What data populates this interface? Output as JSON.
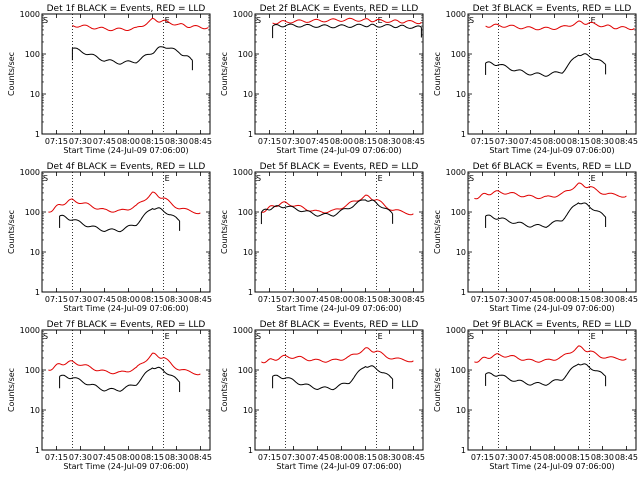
{
  "figure": {
    "date_label": "Start Time (24-Jul-09 07:06:00)",
    "ylabel": "Counts/sec",
    "x_ticks": [
      "07:15",
      "07:30",
      "07:45",
      "08:00",
      "08:15",
      "08:30",
      "08:45"
    ],
    "y_ticks": [
      "1",
      "10",
      "100",
      "1000"
    ],
    "marker_labels": [
      "S",
      "E"
    ],
    "series_colors": {
      "events": "#000000",
      "lld": "#e00000"
    }
  },
  "chart_data": [
    {
      "type": "line",
      "title": "Det 1f BLACK = Events, RED = LLD",
      "xlabel": "Start Time (24-Jul-09 07:06:00)",
      "ylabel": "Counts/sec",
      "yscale": "log",
      "ylim": [
        1,
        1000
      ],
      "xlim": [
        "07:06",
        "08:51"
      ],
      "markers": [
        "07:25",
        "08:22"
      ],
      "x": [
        "07:17",
        "07:25",
        "07:35",
        "07:45",
        "07:55",
        "08:05",
        "08:15",
        "08:22",
        "08:32",
        "08:40",
        "08:50"
      ],
      "series": [
        {
          "color": "#e00000",
          "values": [
            null,
            520,
            480,
            420,
            410,
            430,
            720,
            650,
            540,
            480,
            460
          ]
        },
        {
          "color": "#000000",
          "values": [
            null,
            140,
            100,
            70,
            60,
            65,
            110,
            160,
            110,
            70,
            null
          ]
        }
      ]
    },
    {
      "type": "line",
      "title": "Det 2f BLACK = Events, RED = LLD",
      "xlabel": "Start Time (24-Jul-09 07:06:00)",
      "ylabel": "Counts/sec",
      "yscale": "log",
      "ylim": [
        1,
        1000
      ],
      "xlim": [
        "07:06",
        "08:51"
      ],
      "markers": [
        "07:25",
        "08:22"
      ],
      "x": [
        "07:17",
        "07:25",
        "07:35",
        "07:45",
        "07:55",
        "08:05",
        "08:15",
        "08:22",
        "08:32",
        "08:40",
        "08:50"
      ],
      "series": [
        {
          "color": "#e00000",
          "values": [
            600,
            640,
            660,
            680,
            700,
            720,
            710,
            680,
            660,
            640,
            620
          ]
        },
        {
          "color": "#000000",
          "values": [
            500,
            520,
            510,
            500,
            490,
            500,
            520,
            510,
            500,
            480,
            460
          ]
        }
      ]
    },
    {
      "type": "line",
      "title": "Det 3f BLACK = Events, RED = LLD",
      "xlabel": "Start Time (24-Jul-09 07:06:00)",
      "ylabel": "Counts/sec",
      "yscale": "log",
      "ylim": [
        1,
        1000
      ],
      "xlim": [
        "07:06",
        "08:51"
      ],
      "markers": [
        "07:25",
        "08:22"
      ],
      "x": [
        "07:17",
        "07:25",
        "07:35",
        "07:45",
        "07:55",
        "08:05",
        "08:15",
        "08:22",
        "08:32",
        "08:40",
        "08:50"
      ],
      "series": [
        {
          "color": "#e00000",
          "values": [
            500,
            520,
            480,
            440,
            430,
            460,
            620,
            580,
            500,
            450,
            440
          ]
        },
        {
          "color": "#000000",
          "values": [
            60,
            55,
            40,
            32,
            30,
            36,
            100,
            90,
            55,
            null,
            null
          ]
        }
      ]
    },
    {
      "type": "line",
      "title": "Det 4f BLACK = Events, RED = LLD",
      "xlabel": "Start Time (24-Jul-09 07:06:00)",
      "ylabel": "Counts/sec",
      "yscale": "log",
      "ylim": [
        1,
        1000
      ],
      "xlim": [
        "07:06",
        "08:51"
      ],
      "markers": [
        "07:25",
        "08:22"
      ],
      "x": [
        "07:10",
        "07:17",
        "07:25",
        "07:35",
        "07:45",
        "07:55",
        "08:05",
        "08:15",
        "08:22",
        "08:32",
        "08:45"
      ],
      "series": [
        {
          "color": "#e00000",
          "values": [
            100,
            150,
            200,
            150,
            110,
            105,
            140,
            300,
            220,
            120,
            95
          ]
        },
        {
          "color": "#000000",
          "values": [
            null,
            80,
            65,
            45,
            35,
            35,
            50,
            130,
            110,
            60,
            null
          ]
        }
      ]
    },
    {
      "type": "line",
      "title": "Det 5f BLACK = Events, RED = LLD",
      "xlabel": "Start Time (24-Jul-09 07:06:00)",
      "ylabel": "Counts/sec",
      "yscale": "log",
      "ylim": [
        1,
        1000
      ],
      "xlim": [
        "07:06",
        "08:51"
      ],
      "markers": [
        "07:25",
        "08:22"
      ],
      "x": [
        "07:10",
        "07:17",
        "07:25",
        "07:35",
        "07:45",
        "07:55",
        "08:05",
        "08:15",
        "08:22",
        "08:32",
        "08:45"
      ],
      "series": [
        {
          "color": "#e00000",
          "values": [
            100,
            140,
            170,
            130,
            100,
            105,
            160,
            250,
            200,
            110,
            90
          ]
        },
        {
          "color": "#000000",
          "values": [
            100,
            130,
            140,
            110,
            85,
            85,
            130,
            210,
            170,
            90,
            null
          ]
        }
      ]
    },
    {
      "type": "line",
      "title": "Det 6f BLACK = Events, RED = LLD",
      "xlabel": "Start Time (24-Jul-09 07:06:00)",
      "ylabel": "Counts/sec",
      "yscale": "log",
      "ylim": [
        1,
        1000
      ],
      "xlim": [
        "07:06",
        "08:51"
      ],
      "markers": [
        "07:25",
        "08:22"
      ],
      "x": [
        "07:10",
        "07:17",
        "07:25",
        "07:35",
        "07:45",
        "07:55",
        "08:05",
        "08:15",
        "08:22",
        "08:32",
        "08:45"
      ],
      "series": [
        {
          "color": "#e00000",
          "values": [
            220,
            280,
            320,
            280,
            240,
            230,
            280,
            500,
            420,
            280,
            250
          ]
        },
        {
          "color": "#000000",
          "values": [
            null,
            80,
            70,
            55,
            45,
            45,
            65,
            180,
            140,
            75,
            null
          ]
        }
      ]
    },
    {
      "type": "line",
      "title": "Det 7f BLACK = Events, RED = LLD",
      "xlabel": "Start Time (24-Jul-09 07:06:00)",
      "ylabel": "Counts/sec",
      "yscale": "log",
      "ylim": [
        1,
        1000
      ],
      "xlim": [
        "07:06",
        "08:51"
      ],
      "markers": [
        "07:25",
        "08:22"
      ],
      "x": [
        "07:10",
        "07:17",
        "07:25",
        "07:35",
        "07:45",
        "07:55",
        "08:05",
        "08:15",
        "08:22",
        "08:32",
        "08:45"
      ],
      "series": [
        {
          "color": "#e00000",
          "values": [
            100,
            140,
            160,
            120,
            90,
            85,
            110,
            250,
            200,
            100,
            80
          ]
        },
        {
          "color": "#000000",
          "values": [
            null,
            70,
            65,
            45,
            32,
            32,
            45,
            120,
            100,
            50,
            null
          ]
        }
      ]
    },
    {
      "type": "line",
      "title": "Det 8f BLACK = Events, RED = LLD",
      "xlabel": "Start Time (24-Jul-09 07:06:00)",
      "ylabel": "Counts/sec",
      "yscale": "log",
      "ylim": [
        1,
        1000
      ],
      "xlim": [
        "07:06",
        "08:51"
      ],
      "markers": [
        "07:25",
        "08:22"
      ],
      "x": [
        "07:10",
        "07:17",
        "07:25",
        "07:35",
        "07:45",
        "07:55",
        "08:05",
        "08:15",
        "08:22",
        "08:32",
        "08:45"
      ],
      "series": [
        {
          "color": "#e00000",
          "values": [
            160,
            180,
            220,
            200,
            170,
            170,
            210,
            340,
            290,
            190,
            170
          ]
        },
        {
          "color": "#000000",
          "values": [
            null,
            70,
            65,
            45,
            35,
            35,
            50,
            130,
            110,
            60,
            null
          ]
        }
      ]
    },
    {
      "type": "line",
      "title": "Det 9f BLACK = Events, RED = LLD",
      "xlabel": "Start Time (24-Jul-09 07:06:00)",
      "ylabel": "Counts/sec",
      "yscale": "log",
      "ylim": [
        1,
        1000
      ],
      "xlim": [
        "07:06",
        "08:51"
      ],
      "markers": [
        "07:25",
        "08:22"
      ],
      "x": [
        "07:10",
        "07:17",
        "07:25",
        "07:35",
        "07:45",
        "07:55",
        "08:05",
        "08:15",
        "08:22",
        "08:32",
        "08:45"
      ],
      "series": [
        {
          "color": "#e00000",
          "values": [
            160,
            200,
            240,
            210,
            170,
            170,
            210,
            380,
            290,
            200,
            190
          ]
        },
        {
          "color": "#000000",
          "values": [
            null,
            80,
            75,
            55,
            45,
            45,
            60,
            150,
            120,
            70,
            null
          ]
        }
      ]
    }
  ]
}
